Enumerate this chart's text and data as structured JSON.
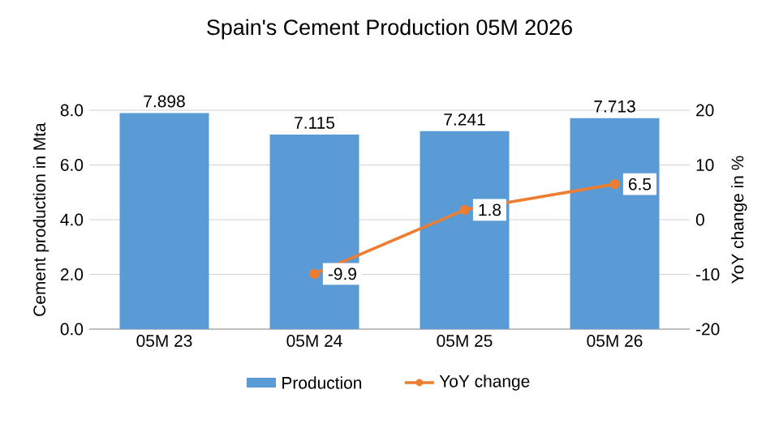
{
  "chart_data": {
    "type": "bar",
    "title": "Spain's Cement Production 05M 2026",
    "categories": [
      "05M 23",
      "05M 24",
      "05M 25",
      "05M 26"
    ],
    "ylabel": "Cement production in Mta",
    "y2label": "YoY change in %",
    "ylim": [
      0,
      8
    ],
    "yticks": [
      {
        "value": 0,
        "label": "0.0"
      },
      {
        "value": 2,
        "label": "2.0"
      },
      {
        "value": 4,
        "label": "4.0"
      },
      {
        "value": 6,
        "label": "6.0"
      },
      {
        "value": 8,
        "label": "8.0"
      }
    ],
    "y2lim": [
      -20,
      20
    ],
    "y2ticks": [
      -20,
      -10,
      0,
      10,
      20
    ],
    "series": [
      {
        "name": "Production",
        "color": "#5b9bd5",
        "values": [
          7.898,
          7.115,
          7.241,
          7.713
        ],
        "value_labels": [
          "7.898",
          "7.115",
          "7.241",
          "7.713"
        ]
      },
      {
        "name": "YoY change",
        "type": "line",
        "axis": "y2",
        "color": "#ed7d31",
        "marker": "circle",
        "values": [
          null,
          -9.9,
          1.8,
          6.5
        ],
        "value_labels": [
          null,
          "-9.9",
          "1.8",
          "6.5"
        ]
      }
    ],
    "grid": "y",
    "legend": "bottom"
  }
}
